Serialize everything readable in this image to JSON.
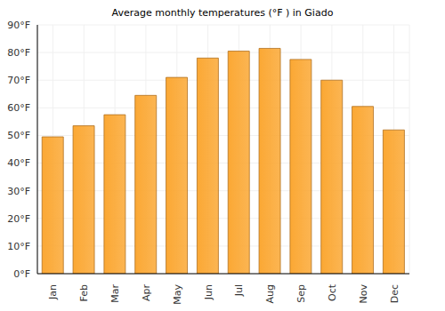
{
  "chart_data": {
    "type": "bar",
    "title": "Average monthly temperatures (°F ) in Giado",
    "categories": [
      "Jan",
      "Feb",
      "Mar",
      "Apr",
      "May",
      "Jun",
      "Jul",
      "Aug",
      "Sep",
      "Oct",
      "Nov",
      "Dec"
    ],
    "values": [
      49.5,
      53.5,
      57.5,
      64.5,
      71,
      78,
      80.5,
      81.5,
      77.5,
      70,
      60.5,
      52
    ],
    "color": "#fba834",
    "ylim": [
      0,
      90
    ],
    "yticks": [
      {
        "value": 0,
        "label": "0°F"
      },
      {
        "value": 10,
        "label": "10°F"
      },
      {
        "value": 20,
        "label": "20°F"
      },
      {
        "value": 30,
        "label": "30°F"
      },
      {
        "value": 40,
        "label": "40°F"
      },
      {
        "value": 50,
        "label": "50°F"
      },
      {
        "value": 60,
        "label": "60°F"
      },
      {
        "value": 70,
        "label": "70°F"
      },
      {
        "value": 80,
        "label": "80°F"
      },
      {
        "value": 90,
        "label": "90°F"
      }
    ],
    "grid": true
  }
}
